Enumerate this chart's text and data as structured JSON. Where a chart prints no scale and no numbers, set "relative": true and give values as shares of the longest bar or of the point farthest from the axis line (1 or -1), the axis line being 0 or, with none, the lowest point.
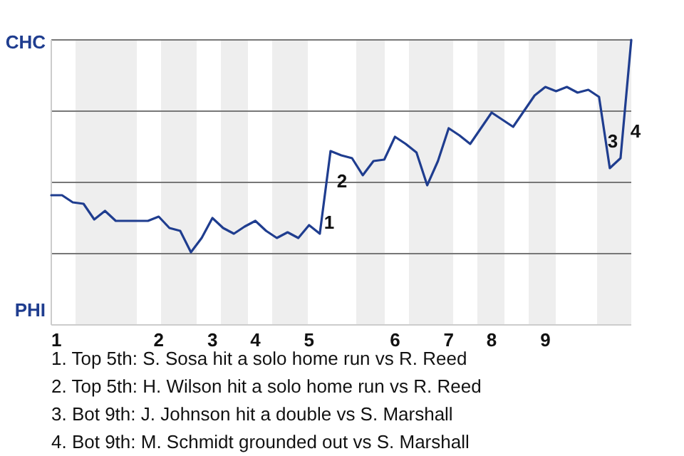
{
  "chart_data": {
    "type": "line",
    "relative": true,
    "categories": [
      "1",
      null,
      null,
      null,
      null,
      null,
      null,
      null,
      null,
      null,
      "2",
      null,
      null,
      null,
      null,
      "3",
      null,
      null,
      null,
      "4",
      null,
      null,
      null,
      null,
      "5",
      null,
      null,
      null,
      null,
      null,
      null,
      null,
      "6",
      null,
      null,
      null,
      null,
      "7",
      null,
      null,
      null,
      "8",
      null,
      null,
      null,
      null,
      "9",
      null,
      null,
      null,
      null,
      null,
      null,
      null,
      null
    ],
    "series": [
      {
        "color": "#1f3d8f",
        "values": [
          0.455,
          0.455,
          0.43,
          0.425,
          0.37,
          0.4,
          0.365,
          0.365,
          0.365,
          0.365,
          0.38,
          0.34,
          0.33,
          0.255,
          0.305,
          0.375,
          0.34,
          0.32,
          0.345,
          0.365,
          0.33,
          0.305,
          0.325,
          0.305,
          0.35,
          0.32,
          0.61,
          0.595,
          0.585,
          0.525,
          0.575,
          0.58,
          0.66,
          0.635,
          0.605,
          0.49,
          0.575,
          0.69,
          0.665,
          0.635,
          0.69,
          0.745,
          0.72,
          0.695,
          0.75,
          0.805,
          0.835,
          0.82,
          0.835,
          0.815,
          0.825,
          0.8,
          0.55,
          0.585,
          1
        ]
      }
    ],
    "grid": "y",
    "marker": "none",
    "line_style": "solid",
    "annotations": [
      "CHC",
      "PHI",
      "1",
      "2",
      "3",
      "4",
      "1. Top 5th: S. Sosa hit a solo home run vs R. Reed",
      "2. Top 5th: H. Wilson hit a solo home run vs R. Reed",
      "3. Bot 9th: J. Johnson hit a double vs S. Marshall",
      "4. Bot 9th: M. Schmidt grounded out vs S. Marshall"
    ]
  }
}
